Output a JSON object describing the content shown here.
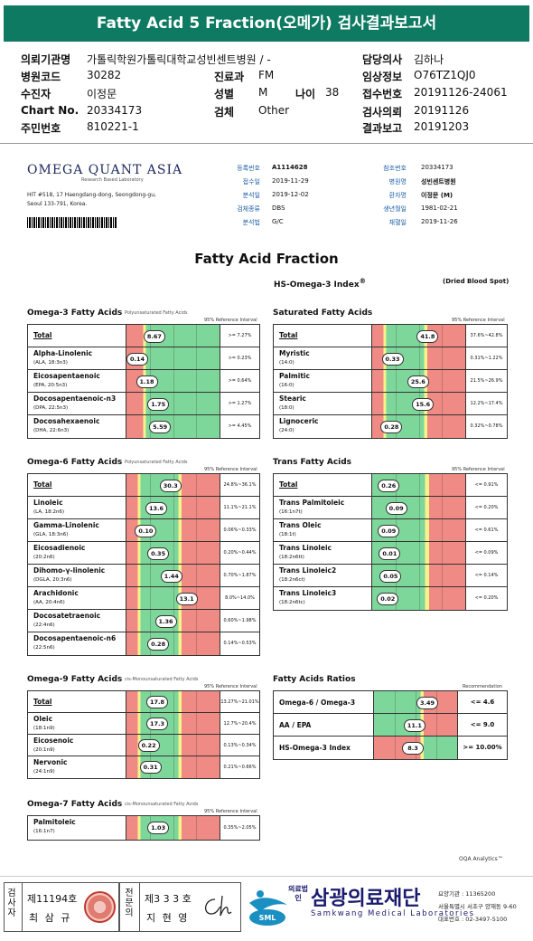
{
  "report_title": "Fatty Acid 5 Fraction(오메가) 검사결과보고서",
  "patient": {
    "left": [
      {
        "label": "의뢰기관명",
        "value": "가톨릭학원가톨릭대학교성빈센트병원 / -"
      },
      {
        "label": "병원코드",
        "value": "30282"
      },
      {
        "label": "수진자",
        "value": "이정문"
      },
      {
        "label": "Chart No.",
        "value": "20334173"
      },
      {
        "label": "주민번호",
        "value": "810221-1"
      }
    ],
    "mid": [
      {
        "label": "진료과",
        "value": "FM"
      },
      {
        "label": "성별",
        "value": "M"
      },
      {
        "label": "검체",
        "value": "Other"
      }
    ],
    "age": {
      "label": "나이",
      "value": "38"
    },
    "right": [
      {
        "label": "담당의사",
        "value": "김하나"
      },
      {
        "label": "임상정보",
        "value": "O76TZ1QJ0"
      },
      {
        "label": "접수번호",
        "value": "20191126-24061"
      },
      {
        "label": "검사의뢰",
        "value": "20191126"
      },
      {
        "label": "결과보고",
        "value": "20191203"
      }
    ]
  },
  "lab": {
    "name": "OMEGA QUANT ASIA",
    "tagline": "Research Based Laboratory",
    "address_lines": [
      "HIT #518, 17 Haengdang-dong, Seongdong-gu,",
      "Seoul 133-791, Korea."
    ],
    "info_left": [
      {
        "k": "등록번호",
        "v": "A1114628",
        "bold": true
      },
      {
        "k": "접수일",
        "v": "2019-11-29"
      },
      {
        "k": "분석일",
        "v": "2019-12-02"
      },
      {
        "k": "검체종류",
        "v": "DBS"
      },
      {
        "k": "분석법",
        "v": "G/C"
      }
    ],
    "info_right": [
      {
        "k": "참조번호",
        "v": "20334173"
      },
      {
        "k": "병원명",
        "v": "성빈센트병원",
        "bold": true
      },
      {
        "k": "환자명",
        "v": "이정문 (M)",
        "bold": true
      },
      {
        "k": "생년월일",
        "v": "1981-02-21"
      },
      {
        "k": "채혈일",
        "v": "2019-11-26"
      }
    ]
  },
  "fraction_title": "Fatty Acid Fraction",
  "hs_index_label": "HS-Omega-3 Index",
  "hs_index_sup": "®",
  "sample_type": "(Dried Blood Spot)",
  "ref_header": "95% Reference Interval",
  "rec_header": "Recommendation",
  "sections": [
    {
      "title": "Omega-3 Fatty Acids",
      "sub": "Polyunsaturated Fatty Acids",
      "hdr": "95% Reference Interval",
      "rows": [
        {
          "name": "Total",
          "sub": "",
          "value": "8.67",
          "pos": 0.18,
          "ref": ">= 7.27%",
          "pal": "lowred"
        },
        {
          "name": "Alpha-Linolenic",
          "sub": "(ALA, 18:3n3)",
          "value": "0.14",
          "pos": 0.0,
          "ref": ">= 0.23%",
          "pal": "lowred"
        },
        {
          "name": "Eicosapentaenoic",
          "sub": "(EPA, 20:5n3)",
          "value": "1.18",
          "pos": 0.1,
          "ref": ">= 0.64%",
          "pal": "lowred"
        },
        {
          "name": "Docosapentaenoic-n3",
          "sub": "(DPA, 22:5n3)",
          "value": "1.75",
          "pos": 0.22,
          "ref": ">= 1.27%",
          "pal": "lowred"
        },
        {
          "name": "Docosahexaenoic",
          "sub": "(DHA, 22:6n3)",
          "value": "5.59",
          "pos": 0.24,
          "ref": ">= 4.45%",
          "pal": "lowred"
        }
      ]
    },
    {
      "title": "Saturated Fatty Acids",
      "sub": "",
      "hdr": "95% Reference Interval",
      "rows": [
        {
          "name": "Total",
          "sub": "",
          "value": "41.8",
          "pos": 0.47,
          "ref": "37.6%~42.8%",
          "pal": "mid"
        },
        {
          "name": "Myristic",
          "sub": "(14:0)",
          "value": "0.33",
          "pos": 0.1,
          "ref": "0.31%~1.22%",
          "pal": "mid"
        },
        {
          "name": "Palmitic",
          "sub": "(16:0)",
          "value": "25.6",
          "pos": 0.37,
          "ref": "21.5%~26.9%",
          "pal": "mid"
        },
        {
          "name": "Stearic",
          "sub": "(18:0)",
          "value": "15.6",
          "pos": 0.42,
          "ref": "12.2%~17.4%",
          "pal": "mid"
        },
        {
          "name": "Lignoceric",
          "sub": "(24:0)",
          "value": "0.28",
          "pos": 0.09,
          "ref": "0.32%~0.78%",
          "pal": "mid"
        }
      ]
    },
    {
      "title": "Omega-6 Fatty Acids",
      "sub": "Polyunsaturated Fatty Acids",
      "hdr": "95% Reference Interval",
      "rows": [
        {
          "name": "Total",
          "sub": "",
          "value": "30.3",
          "pos": 0.35,
          "ref": "24.8%~36.1%",
          "pal": "mid"
        },
        {
          "name": "Linoleic",
          "sub": "(LA, 18:2n6)",
          "value": "13.6",
          "pos": 0.2,
          "ref": "11.1%~21.1%",
          "pal": "mid"
        },
        {
          "name": "Gamma-Linolenic",
          "sub": "(GLA, 18:3n6)",
          "value": "0.10",
          "pos": 0.09,
          "ref": "0.06%~0.33%",
          "pal": "mid"
        },
        {
          "name": "Eicosadienoic",
          "sub": "(20:2n6)",
          "value": "0.35",
          "pos": 0.22,
          "ref": "0.20%~0.44%",
          "pal": "mid"
        },
        {
          "name": "Dihomo-γ-linolenic",
          "sub": "(DGLA, 20:3n6)",
          "value": "1.44",
          "pos": 0.36,
          "ref": "0.70%~1.87%",
          "pal": "mid"
        },
        {
          "name": "Arachidonic",
          "sub": "(AA, 20:4n6)",
          "value": "13.1",
          "pos": 0.52,
          "ref": "8.0%~14.0%",
          "pal": "mid"
        },
        {
          "name": "Docosatetraenoic",
          "sub": "(22:4n6)",
          "value": "1.36",
          "pos": 0.3,
          "ref": "0.60%~1.98%",
          "pal": "mid"
        },
        {
          "name": "Docosapentaenoic-n6",
          "sub": "(22:5n6)",
          "value": "0.28",
          "pos": 0.22,
          "ref": "0.14%~0.53%",
          "pal": "mid"
        }
      ]
    },
    {
      "title": "Trans Fatty Acids",
      "sub": "",
      "hdr": "95% Reference Interval",
      "rows": [
        {
          "name": "Total",
          "sub": "",
          "value": "0.26",
          "pos": 0.06,
          "ref": "<= 0.91%",
          "pal": "highred"
        },
        {
          "name": "Trans Palmitoleic",
          "sub": "(16:1n7t)",
          "value": "0.09",
          "pos": 0.14,
          "ref": "<= 0.20%",
          "pal": "highred"
        },
        {
          "name": "Trans Oleic",
          "sub": "(18:1t)",
          "value": "0.09",
          "pos": 0.06,
          "ref": "<= 0.61%",
          "pal": "highred"
        },
        {
          "name": "Trans Linoleic",
          "sub": "(18:2n6tt)",
          "value": "0.01",
          "pos": 0.07,
          "ref": "<= 0.09%",
          "pal": "highred"
        },
        {
          "name": "Trans Linoleic2",
          "sub": "(18:2n6ct)",
          "value": "0.05",
          "pos": 0.08,
          "ref": "<= 0.14%",
          "pal": "highred"
        },
        {
          "name": "Trans Linoleic3",
          "sub": "(18:2n6tc)",
          "value": "0.02",
          "pos": 0.05,
          "ref": "<= 0.20%",
          "pal": "highred"
        }
      ]
    },
    {
      "title": "Omega-9 Fatty Acids",
      "sub": "cis-Monounsaturated Fatty Acids",
      "hdr": "95% Reference Interval",
      "rows": [
        {
          "name": "Total",
          "sub": "",
          "value": "17.8",
          "pos": 0.21,
          "ref": "13.27%~21.01%",
          "pal": "mid"
        },
        {
          "name": "Oleic",
          "sub": "(18:1n9)",
          "value": "17.3",
          "pos": 0.21,
          "ref": "12.7%~20.4%",
          "pal": "mid"
        },
        {
          "name": "Eicosenoic",
          "sub": "(20:1n9)",
          "value": "0.22",
          "pos": 0.12,
          "ref": "0.13%~0.34%",
          "pal": "mid"
        },
        {
          "name": "Nervonic",
          "sub": "(24:1n9)",
          "value": "0.31",
          "pos": 0.14,
          "ref": "0.21%~0.66%",
          "pal": "mid"
        }
      ]
    },
    {
      "title": "Fatty Acids Ratios",
      "sub": "",
      "hdr": "Recommendation",
      "rows": [
        {
          "name": "Omega-6 / Omega-3",
          "sub": "",
          "value": "3.49",
          "pos": 0.5,
          "ref": "<= 4.6",
          "pal": "ratio"
        },
        {
          "name": "AA / EPA",
          "sub": "",
          "value": "11.1",
          "pos": 0.35,
          "ref": "<= 9.0",
          "pal": "ratio"
        },
        {
          "name": "HS-Omega-3 Index",
          "sub": "",
          "value": "8.3",
          "pos": 0.33,
          "ref": ">= 10.00%",
          "pal": "ratio2"
        }
      ]
    },
    {
      "title": "Omega-7 Fatty Acids",
      "sub": "cis-Monounsaturated Fatty Acids",
      "hdr": "95% Reference Interval",
      "rows": [
        {
          "name": "Palmitoleic",
          "sub": "(16:1n7)",
          "value": "1.03",
          "pos": 0.22,
          "ref": "0.35%~2.05%",
          "pal": "mid"
        }
      ]
    }
  ],
  "oqa": "OQA Analytics™",
  "footer": {
    "exam_label": "검사자",
    "exam_no": "제11194호",
    "exam_name": "최 삼 규",
    "spec_label": "전문의",
    "spec_no": "제3 3 3 호",
    "spec_name": "지 현 영",
    "sml": "SML",
    "corp_prefix": "의료법인",
    "corp_name": "삼광의료재단",
    "corp_en": "Samkwang Medical Laboratories",
    "contact": [
      "요양기관 : 11365200",
      "서울특별시 서초구 양재동 9-60",
      "대표번호 : 02-3497-5100"
    ]
  },
  "colors": {
    "green": "#7ed79a",
    "red": "#f08a84",
    "yellow": "#f7f28a",
    "title_bg": "#0e7a62"
  }
}
